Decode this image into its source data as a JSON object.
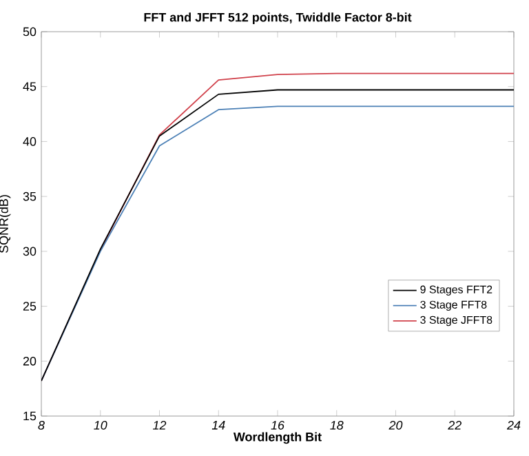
{
  "chart_data": {
    "type": "line",
    "title": "FFT and JFFT 512 points, Twiddle Factor 8-bit",
    "xlabel": "Wordlength Bit",
    "ylabel": "SQNR(dB)",
    "x": [
      8,
      10,
      12,
      14,
      16,
      18,
      20,
      22,
      24
    ],
    "series": [
      {
        "name": "9 Stages FFT2",
        "color": "#000000",
        "values": [
          18.2,
          30.2,
          40.5,
          44.3,
          44.7,
          44.7,
          44.7,
          44.7,
          44.7
        ]
      },
      {
        "name": "3 Stage FFT8",
        "color": "#4a7fb5",
        "values": [
          18.2,
          30.0,
          39.6,
          42.9,
          43.2,
          43.2,
          43.2,
          43.2,
          43.2
        ]
      },
      {
        "name": "3 Stage JFFT8",
        "color": "#d0404a",
        "values": [
          18.2,
          30.1,
          40.6,
          45.6,
          46.1,
          46.2,
          46.2,
          46.2,
          46.2
        ]
      }
    ],
    "xlim": [
      8,
      24
    ],
    "ylim": [
      15,
      50
    ],
    "xticks": [
      8,
      10,
      12,
      14,
      16,
      18,
      20,
      22,
      24
    ],
    "yticks": [
      15,
      20,
      25,
      30,
      35,
      40,
      45,
      50
    ],
    "legend": "bottom right",
    "grid": false,
    "marker": "none",
    "line_style": "solid"
  }
}
